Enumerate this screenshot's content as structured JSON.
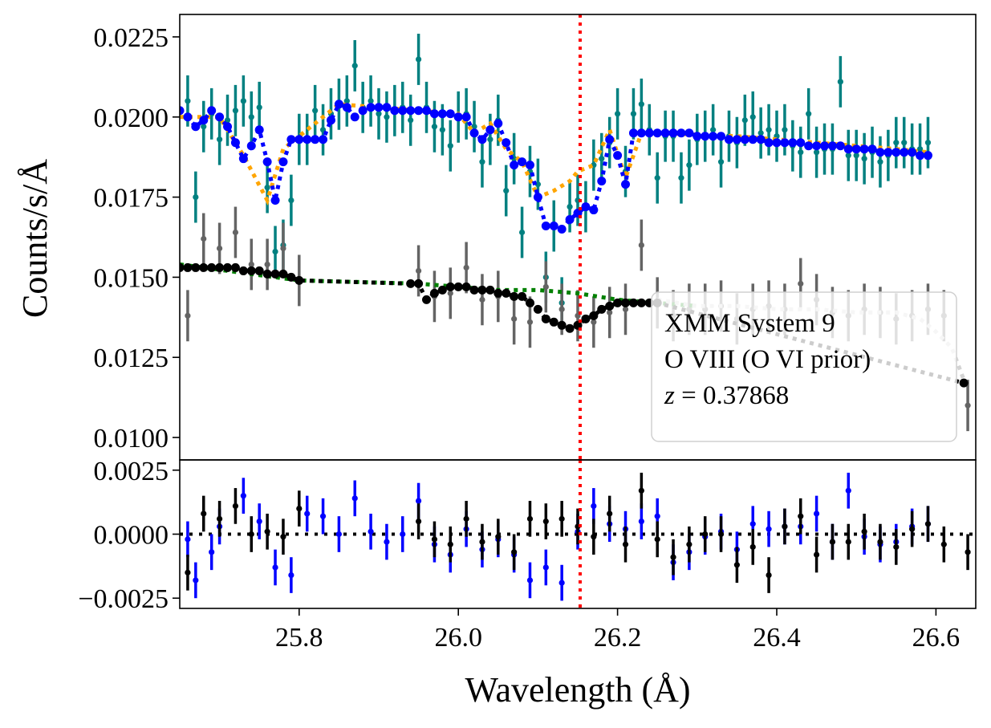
{
  "chart_data": [
    {
      "panel": "main",
      "type": "scatter",
      "title": "",
      "xlabel": "",
      "ylabel": "Counts/s/Å",
      "xlim": [
        25.65,
        26.65
      ],
      "ylim": [
        0.0093,
        0.0232
      ],
      "yticks": [
        {
          "value": 0.01,
          "label": "0.0100"
        },
        {
          "value": 0.0125,
          "label": "0.0125"
        },
        {
          "value": 0.015,
          "label": "0.0150"
        },
        {
          "value": 0.0175,
          "label": "0.0175"
        },
        {
          "value": 0.02,
          "label": "0.0200"
        },
        {
          "value": 0.0225,
          "label": "0.0225"
        }
      ],
      "grid": false,
      "vline": {
        "x": 26.153,
        "color": "#ff0000",
        "style": "dotted"
      },
      "annotation": {
        "placement": "lower-right",
        "lines": [
          "XMM System 9",
          "O VIII (O VI prior)"
        ],
        "z_prefix": "z",
        "z_value": " = 0.37868"
      },
      "series": [
        {
          "kind": "errorbar",
          "color": "#008080",
          "x": [
            25.66,
            25.67,
            25.68,
            25.69,
            25.7,
            25.71,
            25.72,
            25.73,
            25.74,
            25.75,
            25.76,
            25.77,
            25.78,
            25.79,
            25.8,
            25.81,
            25.82,
            25.83,
            25.84,
            25.85,
            25.86,
            25.87,
            25.88,
            25.89,
            25.9,
            25.91,
            25.92,
            25.93,
            25.94,
            25.95,
            25.96,
            25.97,
            25.98,
            25.99,
            26.0,
            26.01,
            26.02,
            26.03,
            26.04,
            26.05,
            26.06,
            26.07,
            26.08,
            26.09,
            26.1,
            26.11,
            26.12,
            26.13,
            26.14,
            26.15,
            26.16,
            26.17,
            26.18,
            26.19,
            26.2,
            26.21,
            26.22,
            26.23,
            26.24,
            26.25,
            26.26,
            26.27,
            26.28,
            26.29,
            26.3,
            26.31,
            26.32,
            26.33,
            26.34,
            26.35,
            26.36,
            26.37,
            26.38,
            26.39,
            26.4,
            26.41,
            26.42,
            26.43,
            26.44,
            26.45,
            26.46,
            26.47,
            26.48,
            26.49,
            26.5,
            26.51,
            26.52,
            26.53,
            26.54,
            26.55,
            26.56,
            26.57,
            26.58,
            26.59
          ],
          "y": [
            0.0205,
            0.0175,
            0.0197,
            0.0201,
            0.0193,
            0.0199,
            0.0202,
            0.0205,
            0.02,
            0.0203,
            0.0178,
            0.0158,
            0.016,
            0.0174,
            0.0193,
            0.0193,
            0.0202,
            0.0196,
            0.0201,
            0.0204,
            0.0205,
            0.0216,
            0.0203,
            0.0205,
            0.0201,
            0.02,
            0.0202,
            0.0203,
            0.0199,
            0.0218,
            0.0203,
            0.0197,
            0.0196,
            0.0191,
            0.02,
            0.0201,
            0.0197,
            0.0186,
            0.0193,
            0.0199,
            0.0177,
            0.0187,
            0.0164,
            0.0183,
            0.0179,
            0.015,
            0.0166,
            0.0142,
            0.0172,
            0.0174,
            0.0172,
            0.0185,
            0.0187,
            0.0192,
            0.0201,
            0.0183,
            0.0201,
            0.0204,
            0.0196,
            0.0181,
            0.0194,
            0.0194,
            0.0181,
            0.0185,
            0.0193,
            0.0194,
            0.0196,
            0.0186,
            0.0194,
            0.0192,
            0.0199,
            0.02,
            0.0195,
            0.0196,
            0.0194,
            0.0196,
            0.0191,
            0.0189,
            0.0201,
            0.0189,
            0.019,
            0.019,
            0.0211,
            0.0188,
            0.0188,
            0.0187,
            0.0189,
            0.0186,
            0.0188,
            0.0192,
            0.0192,
            0.019,
            0.019,
            0.0192
          ],
          "yerr": 0.0008
        },
        {
          "kind": "errorbar",
          "color": "#646464",
          "x": [
            25.66,
            25.68,
            25.7,
            25.72,
            25.74,
            25.76,
            25.78,
            25.8,
            25.95,
            25.97,
            25.99,
            26.01,
            26.03,
            26.05,
            26.07,
            26.09,
            26.11,
            26.13,
            26.15,
            26.17,
            26.19,
            26.21,
            26.23,
            26.25,
            26.27,
            26.29,
            26.31,
            26.33,
            26.35,
            26.37,
            26.39,
            26.41,
            26.43,
            26.45,
            26.47,
            26.49,
            26.51,
            26.53,
            26.55,
            26.57,
            26.59,
            26.61,
            26.64
          ],
          "y": [
            0.0138,
            0.0162,
            0.0159,
            0.0164,
            0.0154,
            0.0154,
            0.0159,
            0.0149,
            0.0152,
            0.0144,
            0.0145,
            0.0153,
            0.0143,
            0.0144,
            0.0137,
            0.0136,
            0.0147,
            0.014,
            0.0138,
            0.0136,
            0.0139,
            0.014,
            0.016,
            0.0142,
            0.0138,
            0.014,
            0.014,
            0.0141,
            0.0137,
            0.014,
            0.0141,
            0.014,
            0.0148,
            0.0143,
            0.0139,
            0.0138,
            0.014,
            0.0139,
            0.0137,
            0.0138,
            0.014,
            0.0138,
            0.011
          ],
          "yerr": 0.0008
        },
        {
          "kind": "model",
          "color": "#ffa500",
          "x": [
            25.65,
            25.7,
            25.73,
            25.76,
            25.78,
            25.8,
            25.85,
            25.9,
            26.0,
            26.02,
            26.04,
            26.06,
            26.08,
            26.1,
            26.12,
            26.14,
            26.15,
            26.17,
            26.19,
            26.21,
            26.23,
            26.25,
            26.35,
            26.45,
            26.55,
            26.59
          ],
          "y": [
            0.02,
            0.02,
            0.0188,
            0.0174,
            0.019,
            0.0194,
            0.0204,
            0.0203,
            0.0201,
            0.0195,
            0.0198,
            0.019,
            0.0186,
            0.0175,
            0.0177,
            0.018,
            0.0183,
            0.0185,
            0.0196,
            0.0181,
            0.0195,
            0.0195,
            0.0194,
            0.0192,
            0.019,
            0.0189
          ]
        },
        {
          "kind": "model",
          "color": "#0000ff",
          "marker": "dot",
          "x": [
            25.65,
            25.66,
            25.67,
            25.68,
            25.69,
            25.7,
            25.71,
            25.72,
            25.73,
            25.74,
            25.75,
            25.76,
            25.77,
            25.78,
            25.79,
            25.8,
            25.81,
            25.82,
            25.83,
            25.84,
            25.85,
            25.86,
            25.87,
            25.88,
            25.89,
            25.9,
            25.91,
            25.92,
            25.93,
            25.94,
            25.95,
            25.96,
            25.97,
            25.98,
            25.99,
            26.0,
            26.01,
            26.02,
            26.03,
            26.04,
            26.05,
            26.06,
            26.07,
            26.08,
            26.09,
            26.1,
            26.11,
            26.12,
            26.13,
            26.14,
            26.15,
            26.16,
            26.17,
            26.18,
            26.19,
            26.2,
            26.21,
            26.22,
            26.23,
            26.24,
            26.25,
            26.26,
            26.27,
            26.28,
            26.29,
            26.3,
            26.31,
            26.32,
            26.33,
            26.34,
            26.35,
            26.36,
            26.37,
            26.38,
            26.39,
            26.4,
            26.41,
            26.42,
            26.43,
            26.44,
            26.45,
            26.46,
            26.47,
            26.48,
            26.49,
            26.5,
            26.51,
            26.52,
            26.53,
            26.54,
            26.55,
            26.56,
            26.57,
            26.58,
            26.59
          ],
          "y": [
            0.0202,
            0.02,
            0.0197,
            0.0199,
            0.0202,
            0.02,
            0.0197,
            0.0192,
            0.0187,
            0.0191,
            0.0196,
            0.0186,
            0.0174,
            0.0186,
            0.0193,
            0.0193,
            0.0193,
            0.0193,
            0.0193,
            0.0199,
            0.0204,
            0.0203,
            0.02,
            0.0202,
            0.0203,
            0.0203,
            0.0203,
            0.0202,
            0.0202,
            0.0202,
            0.0202,
            0.0202,
            0.0201,
            0.0201,
            0.0201,
            0.02,
            0.02,
            0.0195,
            0.0193,
            0.0196,
            0.0198,
            0.0192,
            0.0185,
            0.0186,
            0.0185,
            0.0175,
            0.0166,
            0.0166,
            0.0165,
            0.0168,
            0.017,
            0.0172,
            0.0171,
            0.018,
            0.0193,
            0.0188,
            0.0179,
            0.0195,
            0.0195,
            0.0195,
            0.0195,
            0.0195,
            0.0195,
            0.0195,
            0.0195,
            0.0194,
            0.0194,
            0.0194,
            0.0194,
            0.0193,
            0.0193,
            0.0193,
            0.0193,
            0.0193,
            0.0192,
            0.0192,
            0.0192,
            0.0192,
            0.0192,
            0.0191,
            0.0191,
            0.0191,
            0.0191,
            0.0191,
            0.019,
            0.019,
            0.019,
            0.019,
            0.0189,
            0.0189,
            0.0189,
            0.0189,
            0.0189,
            0.0188,
            0.0188
          ]
        },
        {
          "kind": "model",
          "color": "#008000",
          "x": [
            25.65,
            25.8,
            25.95,
            26.0,
            26.05,
            26.1,
            26.15,
            26.2,
            26.25,
            26.3
          ],
          "y": [
            0.0154,
            0.0149,
            0.0148,
            0.0147,
            0.0146,
            0.0146,
            0.0145,
            0.0143,
            0.0142,
            0.0141
          ]
        },
        {
          "kind": "model",
          "color": "#d3d3d3",
          "x": [
            26.25,
            26.3,
            26.35,
            26.4,
            26.45,
            26.5,
            26.55,
            26.58,
            26.6,
            26.62,
            26.635
          ],
          "y": [
            0.0143,
            0.0141,
            0.0141,
            0.014,
            0.014,
            0.0139,
            0.0139,
            0.0137,
            0.0133,
            0.0128,
            0.0118
          ]
        },
        {
          "kind": "model",
          "color": "#000000",
          "marker": "dot",
          "x": [
            25.65,
            25.66,
            25.67,
            25.68,
            25.69,
            25.7,
            25.71,
            25.72,
            25.73,
            25.74,
            25.75,
            25.76,
            25.77,
            25.78,
            25.79,
            25.8,
            25.94,
            25.95,
            25.96,
            25.97,
            25.98,
            25.99,
            26.0,
            26.01,
            26.02,
            26.03,
            26.04,
            26.05,
            26.06,
            26.07,
            26.08,
            26.09,
            26.1,
            26.11,
            26.12,
            26.13,
            26.14,
            26.15,
            26.16,
            26.17,
            26.18,
            26.19,
            26.2,
            26.21,
            26.22,
            26.23,
            26.24,
            26.25,
            26.635
          ],
          "y": [
            0.0153,
            0.0153,
            0.0153,
            0.0153,
            0.0153,
            0.0153,
            0.0153,
            0.0153,
            0.0152,
            0.0152,
            0.0152,
            0.0151,
            0.0151,
            0.0151,
            0.015,
            0.0149,
            0.0148,
            0.0148,
            0.0143,
            0.0145,
            0.0146,
            0.0147,
            0.0147,
            0.0147,
            0.0146,
            0.0146,
            0.0146,
            0.0145,
            0.0145,
            0.0144,
            0.0144,
            0.0142,
            0.014,
            0.0137,
            0.0136,
            0.0135,
            0.0134,
            0.0135,
            0.0137,
            0.0138,
            0.014,
            0.0141,
            0.0142,
            0.0142,
            0.0142,
            0.0142,
            0.0142,
            0.0142,
            0.0117
          ]
        }
      ]
    },
    {
      "panel": "residual",
      "type": "scatter",
      "xlabel": "Wavelength (Å)",
      "ylabel": "",
      "xlim": [
        25.65,
        26.65
      ],
      "ylim": [
        -0.0029,
        0.0029
      ],
      "xticks": [
        {
          "value": 25.8,
          "label": "25.8"
        },
        {
          "value": 26.0,
          "label": "26.0"
        },
        {
          "value": 26.2,
          "label": "26.2"
        },
        {
          "value": 26.4,
          "label": "26.4"
        },
        {
          "value": 26.6,
          "label": "26.6"
        }
      ],
      "yticks": [
        {
          "value": -0.0025,
          "label": "−0.0025"
        },
        {
          "value": 0.0,
          "label": "0.0000"
        },
        {
          "value": 0.0025,
          "label": "0.0025"
        }
      ],
      "hline": {
        "y": 0.0,
        "color": "#000000",
        "style": "dotted"
      },
      "vline": {
        "x": 26.153,
        "color": "#ff0000",
        "style": "dotted"
      },
      "series": [
        {
          "kind": "errorbar",
          "color": "#0000ff",
          "x": [
            25.66,
            25.67,
            25.69,
            25.7,
            25.73,
            25.75,
            25.77,
            25.79,
            25.81,
            25.83,
            25.85,
            25.87,
            25.89,
            25.91,
            25.93,
            25.95,
            25.97,
            25.99,
            26.01,
            26.03,
            26.05,
            26.07,
            26.09,
            26.11,
            26.13,
            26.15,
            26.17,
            26.19,
            26.21,
            26.23,
            26.25,
            26.27,
            26.29,
            26.31,
            26.33,
            26.35,
            26.37,
            26.39,
            26.41,
            26.43,
            26.45,
            26.47,
            26.49,
            26.51,
            26.53,
            26.55,
            26.57,
            26.59
          ],
          "y": [
            -0.0002,
            -0.0018,
            -0.0007,
            0.0003,
            0.0015,
            0.0005,
            -0.0013,
            -0.0016,
            0.0008,
            0.0007,
            0.0,
            0.0014,
            0.0001,
            -0.0003,
            0.0,
            0.0013,
            -0.0004,
            -0.0008,
            0.0002,
            -0.0006,
            -0.0002,
            -0.0008,
            -0.0018,
            -0.0013,
            -0.0019,
            0.0001,
            0.0011,
            0.0004,
            0.0002,
            0.0005,
            0.0007,
            -0.0011,
            -0.0007,
            -0.0001,
            0.0001,
            -0.0006,
            0.0004,
            0.0002,
            0.0003,
            0.0003,
            0.0008,
            -0.0003,
            0.0017,
            -0.0001,
            -0.0004,
            -0.0003,
            0.0003,
            0.0004
          ],
          "yerr": 0.0007
        },
        {
          "kind": "errorbar",
          "color": "#000000",
          "x": [
            25.66,
            25.68,
            25.7,
            25.72,
            25.74,
            25.76,
            25.78,
            25.8,
            25.95,
            25.97,
            25.99,
            26.01,
            26.03,
            26.05,
            26.07,
            26.09,
            26.11,
            26.13,
            26.15,
            26.17,
            26.19,
            26.21,
            26.23,
            26.25,
            26.27,
            26.29,
            26.31,
            26.33,
            26.35,
            26.37,
            26.39,
            26.41,
            26.43,
            26.45,
            26.47,
            26.49,
            26.51,
            26.53,
            26.55,
            26.57,
            26.59,
            26.61,
            26.64
          ],
          "y": [
            -0.0015,
            0.0008,
            0.0006,
            0.0011,
            0.0,
            0.0001,
            -0.0001,
            0.001,
            0.0005,
            -0.0002,
            -0.0004,
            0.0006,
            -0.0003,
            -0.0001,
            -0.0007,
            0.0006,
            0.0005,
            0.0006,
            0.0003,
            -0.0001,
            0.0008,
            -0.0004,
            0.0017,
            -0.0002,
            -0.0009,
            -0.0004,
            0.0,
            0.0,
            -0.0012,
            -0.0005,
            -0.0016,
            0.0003,
            0.0007,
            -0.0008,
            -0.0003,
            -0.0003,
            0.0001,
            -0.0003,
            -0.0005,
            0.0002,
            0.0004,
            -0.0004,
            -0.0007
          ],
          "yerr": 0.0007
        }
      ]
    }
  ]
}
